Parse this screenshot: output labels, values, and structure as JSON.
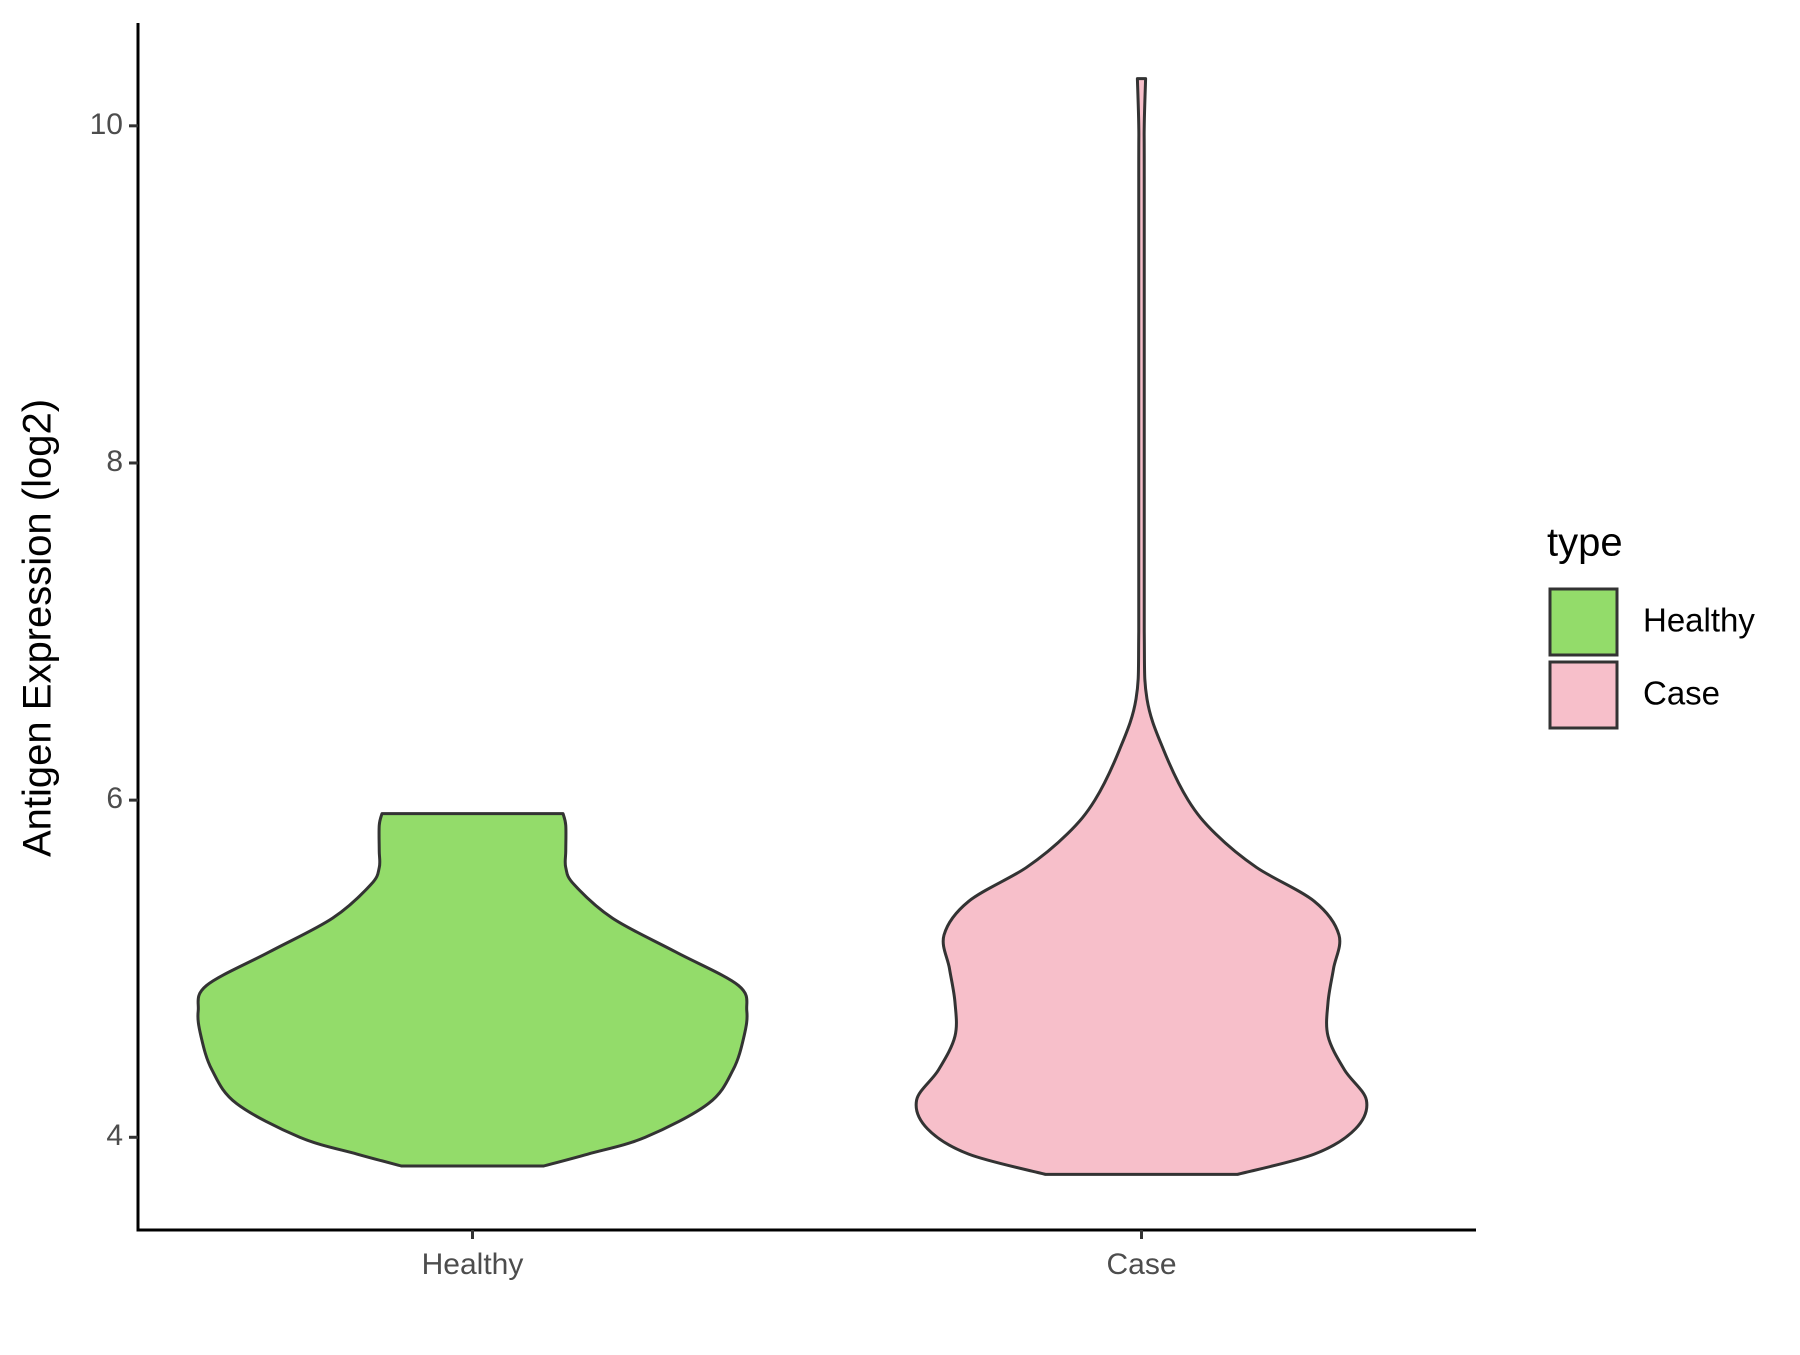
{
  "chart_data": {
    "type": "violin",
    "y_label": "Antigen Expression (log2)",
    "categories": [
      "Healthy",
      "Case"
    ],
    "legend_title": "type",
    "legend_position": "right",
    "outline_color": "#333333",
    "ylim": [
      3.45,
      10.61
    ],
    "yticks": [
      4,
      6,
      8,
      10
    ],
    "series": [
      {
        "name": "Healthy",
        "color": "#93dc6a",
        "y": [
          3.83,
          3.9,
          4.0,
          4.2,
          4.4,
          4.6,
          4.75,
          4.9,
          5.1,
          5.3,
          5.5,
          5.6,
          5.7,
          5.85,
          5.92
        ],
        "density": [
          0.26,
          0.42,
          0.63,
          0.86,
          0.95,
          0.99,
          1.0,
          0.97,
          0.74,
          0.51,
          0.37,
          0.34,
          0.34,
          0.34,
          0.33
        ]
      },
      {
        "name": "Case",
        "color": "#f7bfca",
        "y": [
          3.78,
          3.9,
          4.05,
          4.22,
          4.4,
          4.6,
          4.8,
          5.0,
          5.2,
          5.4,
          5.6,
          5.8,
          6.0,
          6.3,
          6.6,
          7.0,
          8.0,
          9.7,
          10.0,
          10.28
        ],
        "density": [
          0.35,
          0.63,
          0.78,
          0.82,
          0.74,
          0.68,
          0.68,
          0.7,
          0.72,
          0.63,
          0.42,
          0.27,
          0.17,
          0.08,
          0.02,
          0.01,
          0.01,
          0.01,
          0.01,
          0.015
        ]
      }
    ]
  }
}
